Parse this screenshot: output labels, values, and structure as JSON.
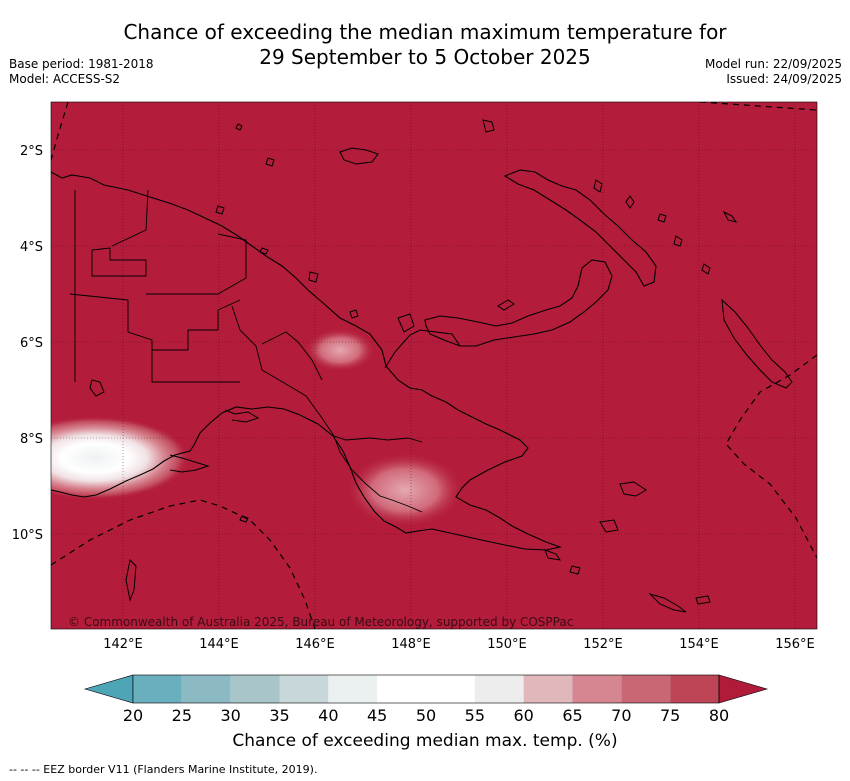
{
  "title_line1": "Chance of exceeding the median maximum temperature for",
  "title_line2": "29 September to 5 October 2025",
  "meta_left": {
    "base_period": "Base period: 1981-2018",
    "model": "Model: ACCESS-S2"
  },
  "meta_right": {
    "model_run": "Model run: 22/09/2025",
    "issued": "Issued: 24/09/2025"
  },
  "lat_labels": [
    "2°S",
    "4°S",
    "6°S",
    "8°S",
    "10°S"
  ],
  "lon_labels": [
    "142°E",
    "144°E",
    "146°E",
    "148°E",
    "150°E",
    "152°E",
    "154°E",
    "156°E"
  ],
  "copyright": "© Commonwealth of Australia 2025, Bureau of Meteorology, supported by COSPPac",
  "colorbar": {
    "ticks": [
      "20",
      "25",
      "30",
      "35",
      "40",
      "45",
      "50",
      "55",
      "60",
      "65",
      "70",
      "75",
      "80"
    ],
    "colors": [
      "#6aafbe",
      "#8bbac4",
      "#a8c6ca",
      "#c8d7d9",
      "#ebf0f1",
      "#ffffff",
      "#ffffff",
      "#ededed",
      "#e0b7bb",
      "#d68690",
      "#c96874",
      "#bd4555"
    ],
    "under_color": "#4ea5b6",
    "over_color": "#b01b3a",
    "title": "Chance of exceeding median max. temp. (%)"
  },
  "footnote": "--  --  -- EEZ border V11 (Flanders Marine Institute, 2019).",
  "map_colors": {
    "background": "#b31c3b",
    "land_line": "#000000"
  }
}
